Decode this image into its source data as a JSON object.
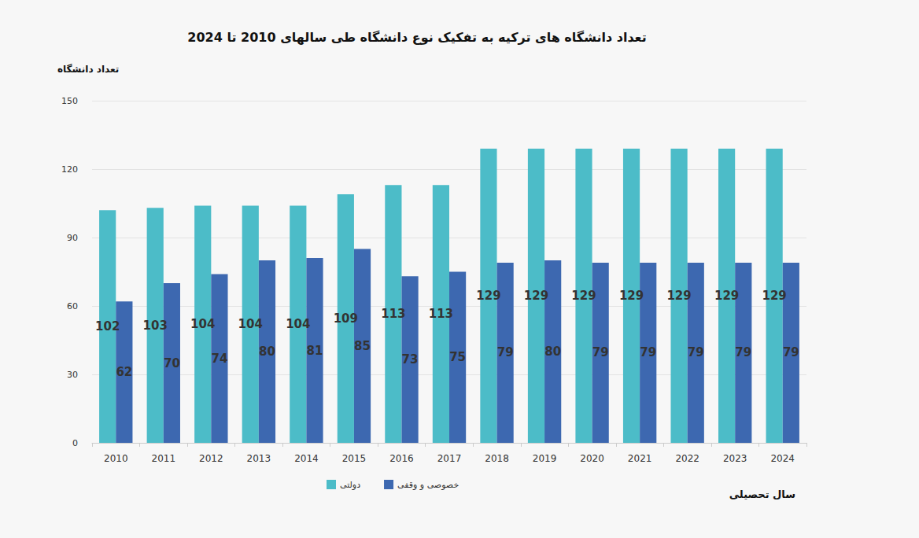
{
  "chart_data": {
    "type": "bar",
    "title": "تعداد دانشگاه های ترکیه به تفکیک نوع دانشگاه طی سالهای 2010 تا 2024",
    "x_label": "سال تحصیلی",
    "y_label": "تعداد دانشگاه",
    "categories": [
      "2010",
      "2011",
      "2012",
      "2013",
      "2014",
      "2015",
      "2016",
      "2017",
      "2018",
      "2019",
      "2020",
      "2021",
      "2022",
      "2023",
      "2024"
    ],
    "series": [
      {
        "name": "دولتی",
        "color": "#4cbcc8",
        "values": [
          102,
          103,
          104,
          104,
          104,
          109,
          113,
          113,
          129,
          129,
          129,
          129,
          129,
          129,
          129
        ]
      },
      {
        "name": "خصوصی و وقفی",
        "color": "#3d68b0",
        "values": [
          62,
          70,
          74,
          80,
          81,
          85,
          73,
          75,
          79,
          80,
          79,
          79,
          79,
          79,
          79
        ]
      }
    ],
    "ylim": [
      0,
      150
    ],
    "yticks": [
      0,
      30,
      60,
      90,
      120,
      150
    ],
    "grid": true,
    "legend": "bottom",
    "data_labels": true
  }
}
